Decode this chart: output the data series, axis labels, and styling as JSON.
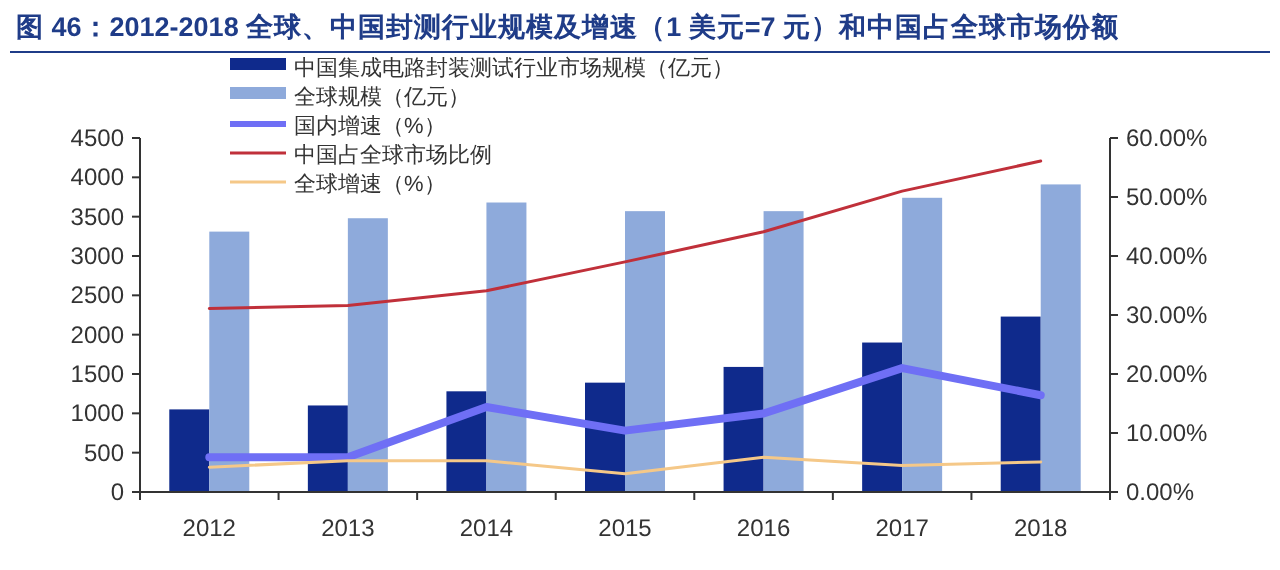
{
  "chart_data": {
    "type": "bar",
    "title": "图 46：2012-2018 全球、中国封测行业规模及增速（1 美元=7 元）和中国占全球市场份额",
    "categories": [
      "2012",
      "2013",
      "2014",
      "2015",
      "2016",
      "2017",
      "2018"
    ],
    "series": [
      {
        "name": "中国集成电路封装测试行业市场规模（亿元）",
        "color": "#0f2a8c",
        "values": [
          1050,
          1100,
          1280,
          1390,
          1590,
          1900,
          2230
        ]
      },
      {
        "name": "全球规模（亿元）",
        "color": "#8eaadb",
        "values": [
          3310,
          3480,
          3680,
          3570,
          3570,
          3740,
          3910
        ]
      },
      {
        "name": "国内增速（%）",
        "type": "line",
        "axis": "y2",
        "color": "#6f6ff5",
        "values": [
          5.9,
          5.9,
          14.4,
          10.4,
          13.3,
          21.0,
          16.4
        ]
      },
      {
        "name": "中国占全球市场比例",
        "type": "line",
        "axis": "y2",
        "color": "#c0303a",
        "values": [
          31.1,
          31.6,
          34.1,
          39.0,
          44.1,
          51.0,
          56.1
        ]
      },
      {
        "name": "全球增速（%）",
        "type": "line",
        "axis": "y2",
        "color": "#f5c888",
        "values": [
          4.2,
          5.3,
          5.3,
          3.1,
          5.9,
          4.5,
          5.1
        ]
      }
    ],
    "ylim": [
      0,
      4500
    ],
    "yticks": [
      0,
      500,
      1000,
      1500,
      2000,
      2500,
      3000,
      3500,
      4000,
      4500
    ],
    "y2lim": [
      0,
      60
    ],
    "y2ticks": [
      {
        "value": 0,
        "label": "0.00%"
      },
      {
        "value": 10,
        "label": "10.00%"
      },
      {
        "value": 20,
        "label": "20.00%"
      },
      {
        "value": 30,
        "label": "30.00%"
      },
      {
        "value": 40,
        "label": "40.00%"
      },
      {
        "value": 50,
        "label": "50.00%"
      },
      {
        "value": 60,
        "label": "60.00%"
      }
    ],
    "legend": "top left",
    "grid": false
  }
}
